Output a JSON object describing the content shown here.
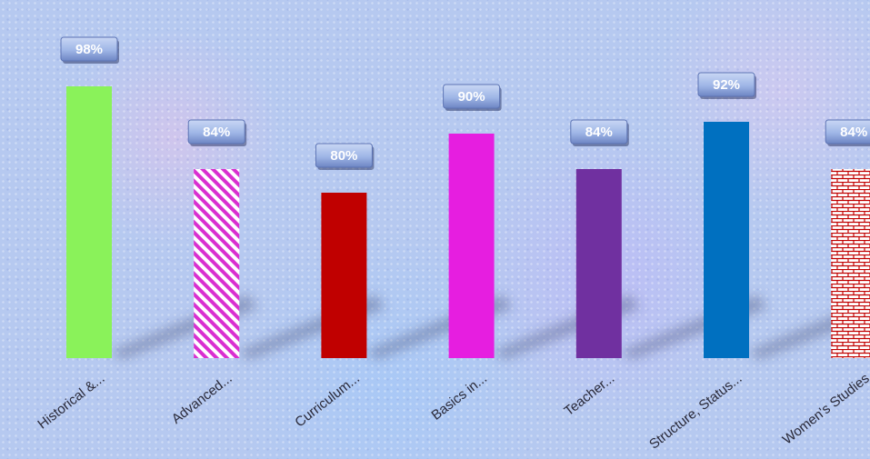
{
  "chart_data": {
    "type": "bar",
    "title": "",
    "xlabel": "",
    "ylabel": "",
    "ylim": [
      0,
      100
    ],
    "grid": false,
    "legend": "none",
    "categories": [
      "Historical &...",
      "Advanced...",
      "Curriculum...",
      "Basics in...",
      "Teacher...",
      "Structure, Status...",
      "Women's Studies"
    ],
    "values": [
      98,
      84,
      80,
      90,
      84,
      92,
      84
    ],
    "value_labels": [
      "98%",
      "84%",
      "80%",
      "90%",
      "84%",
      "92%",
      "84%"
    ],
    "colors": [
      "#8af25a",
      "#d92fd0",
      "#c00000",
      "#e61ee0",
      "#7030a0",
      "#0070c0",
      "#c00000"
    ],
    "fills": [
      "solid",
      "diagonal-stripes",
      "solid",
      "solid",
      "solid",
      "solid",
      "brick"
    ]
  }
}
